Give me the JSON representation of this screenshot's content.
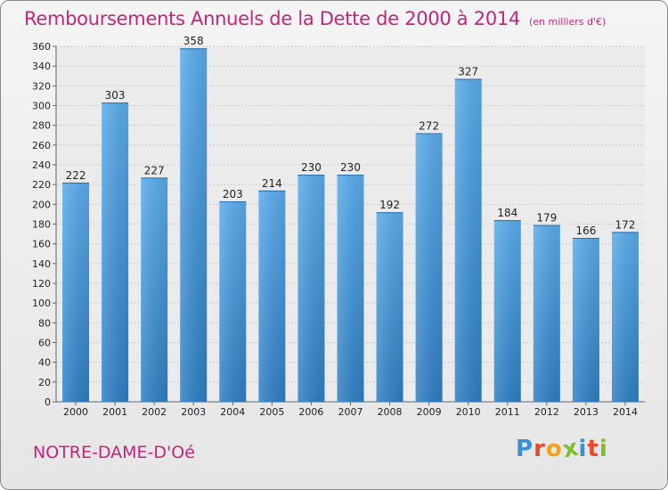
{
  "header": {
    "title": "Remboursements Annuels de la Dette de 2000 à 2014",
    "unit": "(en milliers d'€)"
  },
  "footer": {
    "commune": "NOTRE-DAME-D'Oé",
    "logo_text": "Proxiti",
    "logo_letters": [
      {
        "ch": "P",
        "color": "#3a8fd6"
      },
      {
        "ch": "r",
        "color": "#e8492a"
      },
      {
        "ch": "o",
        "color": "#f2a21a"
      },
      {
        "ch": "x",
        "color": "#7cbf2b"
      },
      {
        "ch": "i",
        "color": "#3a8fd6"
      },
      {
        "ch": "t",
        "color": "#e8492a"
      },
      {
        "ch": "i",
        "color": "#7cbf2b"
      }
    ]
  },
  "chart_data": {
    "type": "bar",
    "title": "Remboursements Annuels de la Dette de 2000 à 2014",
    "subtitle": "(en milliers d'€)",
    "categories": [
      "2000",
      "2001",
      "2002",
      "2003",
      "2004",
      "2005",
      "2006",
      "2007",
      "2008",
      "2009",
      "2010",
      "2011",
      "2012",
      "2013",
      "2014"
    ],
    "values": [
      222,
      303,
      227,
      358,
      203,
      214,
      230,
      230,
      192,
      272,
      327,
      184,
      179,
      166,
      172
    ],
    "xlabel": "",
    "ylabel": "",
    "ylim": [
      0,
      360
    ],
    "ytick_step": 20,
    "grid": true,
    "legend": "none",
    "bar_color": "#3e95dc"
  }
}
